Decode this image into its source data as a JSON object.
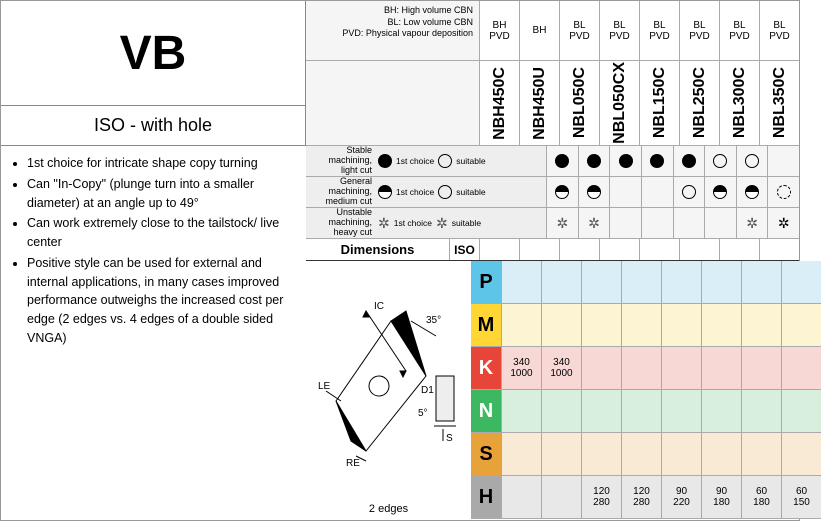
{
  "title": "VB",
  "subtitle": "ISO - with hole",
  "bullets": [
    "1st choice for intricate shape copy turning",
    "Can \"In-Copy\" (plunge turn into a smaller diameter) at an angle up to 49°",
    "Can work extremely close to the tailstock/ live center",
    "Positive style can be used for external and internal applications, in many cases improved performance outweighs the increased cost per edge (2 edges vs. 4 edges of a double sided VNGA)"
  ],
  "legend_notes": [
    "BH: High volume CBN",
    "BL: Low volume CBN",
    "PVD: Physical vapour deposition"
  ],
  "first_choice_label": "1st choice",
  "suitable_label": "suitable",
  "grades": [
    {
      "name": "NBH450C",
      "coat1": "BH",
      "coat2": "PVD"
    },
    {
      "name": "NBH450U",
      "coat1": "BH",
      "coat2": ""
    },
    {
      "name": "NBL050C",
      "coat1": "BL",
      "coat2": "PVD"
    },
    {
      "name": "NBL050CX",
      "coat1": "BL",
      "coat2": "PVD"
    },
    {
      "name": "NBL150C",
      "coat1": "BL",
      "coat2": "PVD"
    },
    {
      "name": "NBL250C",
      "coat1": "BL",
      "coat2": "PVD"
    },
    {
      "name": "NBL300C",
      "coat1": "BL",
      "coat2": "PVD"
    },
    {
      "name": "NBL350C",
      "coat1": "BL",
      "coat2": "PVD"
    }
  ],
  "machining_rows": [
    {
      "label1": "Stable machining,",
      "label2": "light cut",
      "symbols": [
        "solid",
        "solid",
        "solid",
        "solid",
        "solid",
        "ring",
        "ring",
        ""
      ]
    },
    {
      "label1": "General machining,",
      "label2": "medium cut",
      "symbols": [
        "half",
        "half",
        "",
        "",
        "ring",
        "half",
        "half",
        "dashring"
      ]
    },
    {
      "label1": "Unstable machining,",
      "label2": "heavy cut",
      "symbols": [
        "gear",
        "gear",
        "",
        "",
        "",
        "",
        "gear",
        "geardark"
      ]
    }
  ],
  "dimensions_label": "Dimensions",
  "iso_label": "ISO",
  "edges_label": "2 edges",
  "diagram_labels": {
    "IC": "IC",
    "LE": "LE",
    "RE": "RE",
    "D1": "D1",
    "S": "S",
    "ang35": "35°",
    "ang5": "5°"
  },
  "iso_rows": [
    {
      "code": "P",
      "color": "P",
      "cells": [
        "",
        "",
        "",
        "",
        "",
        "",
        "",
        ""
      ]
    },
    {
      "code": "M",
      "color": "M",
      "cells": [
        "",
        "",
        "",
        "",
        "",
        "",
        "",
        ""
      ]
    },
    {
      "code": "K",
      "color": "K",
      "cells": [
        "340\n1000",
        "340\n1000",
        "",
        "",
        "",
        "",
        "",
        ""
      ]
    },
    {
      "code": "N",
      "color": "N",
      "cells": [
        "",
        "",
        "",
        "",
        "",
        "",
        "",
        ""
      ]
    },
    {
      "code": "S",
      "color": "S",
      "cells": [
        "",
        "",
        "",
        "",
        "",
        "",
        "",
        ""
      ]
    },
    {
      "code": "H",
      "color": "H",
      "cells": [
        "",
        "",
        "120\n280",
        "120\n280",
        "90\n220",
        "90\n180",
        "60\n180",
        "60\n150"
      ]
    }
  ],
  "colors": {
    "P": "#5dc5e8",
    "M": "#ffd633",
    "K": "#e8453a",
    "N": "#3db862",
    "S": "#e8a23a",
    "H": "#a9a9a9"
  }
}
